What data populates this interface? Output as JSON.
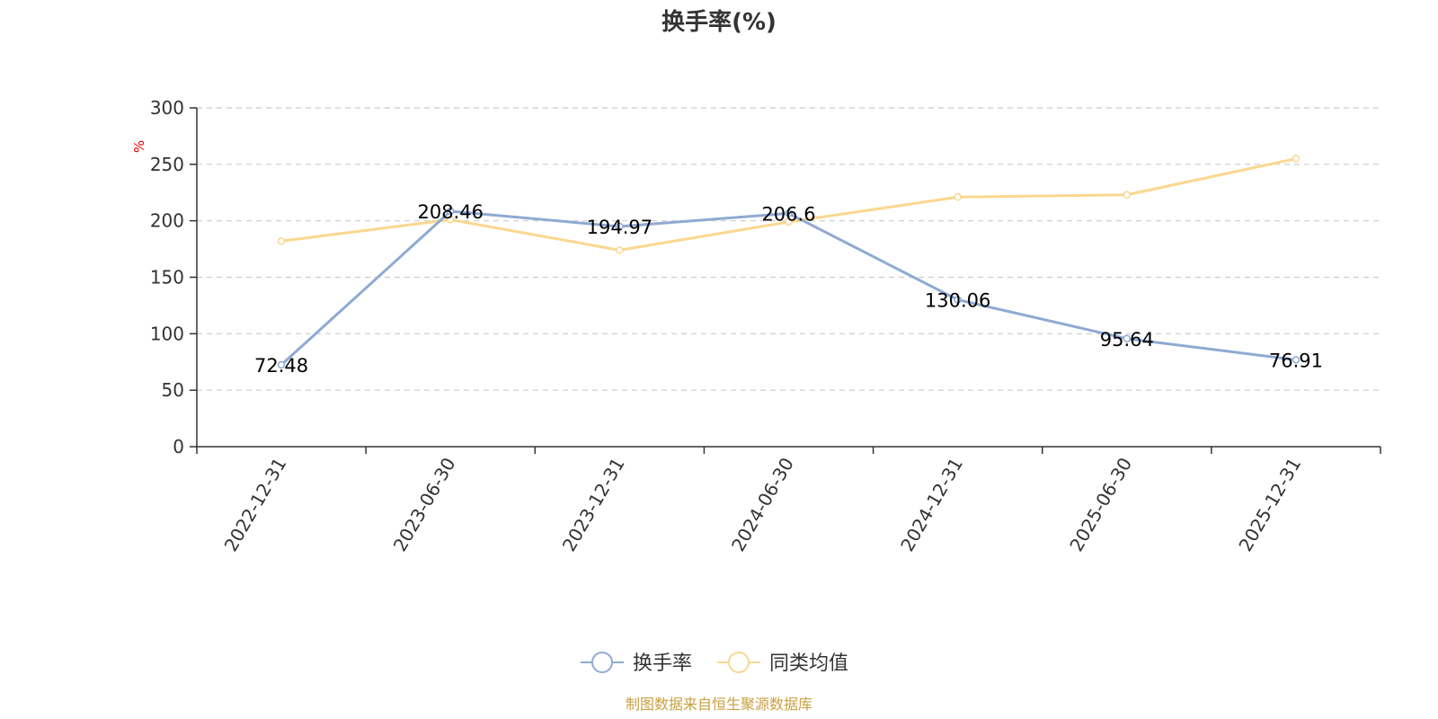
{
  "chart_data": {
    "type": "line",
    "title": "换手率(%)",
    "y_unit": "%",
    "categories": [
      "2022-12-31",
      "2023-06-30",
      "2023-12-31",
      "2024-06-30",
      "2024-12-31",
      "2025-06-30",
      "2025-12-31"
    ],
    "ylim": [
      0,
      300
    ],
    "y_ticks": [
      "0",
      "50",
      "100",
      "150",
      "200",
      "250",
      "300"
    ],
    "grid": true,
    "legend_position": "bottom-center",
    "series": [
      {
        "name": "换手率",
        "color": "#8faad2",
        "values": [
          72.48,
          208.46,
          194.97,
          206.6,
          130.06,
          95.64,
          76.91
        ],
        "labels": [
          "72.48",
          "208.46",
          "194.97",
          "206.6",
          "130.06",
          "95.64",
          "76.91"
        ]
      },
      {
        "name": "同类均值",
        "color": "#fbd78f",
        "values": [
          182,
          201,
          174,
          199,
          221,
          223,
          255
        ]
      }
    ],
    "source": "制图数据来自恒生聚源数据库"
  }
}
